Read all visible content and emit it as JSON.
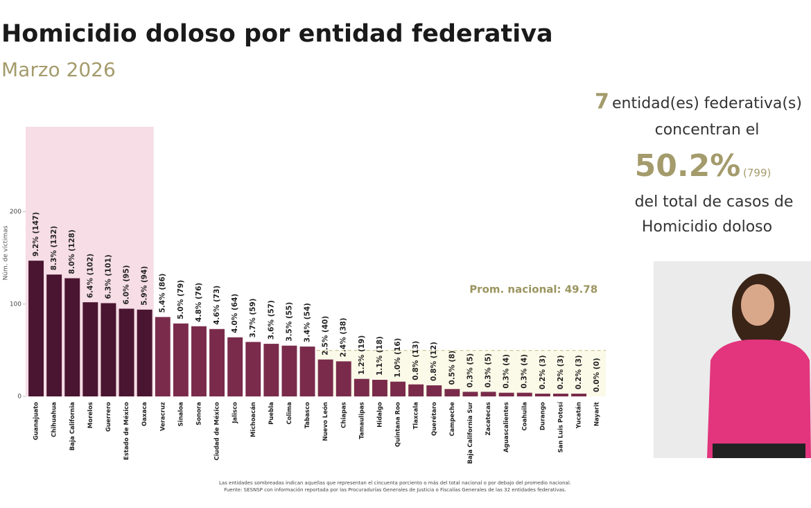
{
  "chart_data": {
    "type": "bar",
    "title": "Homicidio doloso por entidad federativa",
    "subtitle": "Marzo 2026",
    "y_label": "Núm. de víctimas",
    "categories": [
      "Guanajuato",
      "Chihuahua",
      "Baja California",
      "Morelos",
      "Guerrero",
      "Estado de México",
      "Oaxaca",
      "Veracruz",
      "Sinaloa",
      "Sonora",
      "Ciudad de México",
      "Jalisco",
      "Michoacán",
      "Puebla",
      "Colima",
      "Tabasco",
      "Nuevo León",
      "Chiapas",
      "Tamaulipas",
      "Hidalgo",
      "Quintana Roo",
      "Tlaxcala",
      "Querétaro",
      "Campeche",
      "Baja California Sur",
      "Zacatecas",
      "Aguascalientes",
      "Coahuila",
      "Durango",
      "San Luis Potosí",
      "Yucatán",
      "Nayarit"
    ],
    "values": [
      147,
      132,
      128,
      102,
      101,
      95,
      94,
      86,
      79,
      76,
      73,
      64,
      59,
      57,
      55,
      54,
      40,
      38,
      19,
      18,
      16,
      13,
      12,
      8,
      5,
      5,
      4,
      4,
      3,
      3,
      3,
      0
    ],
    "value_labels": [
      "9.2% (147)",
      "8.3% (132)",
      "8.0% (128)",
      "6.4% (102)",
      "6.3% (101)",
      "6.0% (95)",
      "5.9% (94)",
      "5.4% (86)",
      "5.0% (79)",
      "4.8% (76)",
      "4.6% (73)",
      "4.0% (64)",
      "3.7% (59)",
      "3.6% (57)",
      "3.5% (55)",
      "3.4% (54)",
      "2.5% (40)",
      "2.4% (38)",
      "1.2% (19)",
      "1.1% (18)",
      "1.0% (16)",
      "0.8% (13)",
      "0.8% (12)",
      "0.5% (8)",
      "0.3% (5)",
      "0.3% (5)",
      "0.3% (4)",
      "0.3% (4)",
      "0.2% (3)",
      "0.2% (3)",
      "0.2% (3)",
      "0.0% (0)"
    ],
    "colors": [
      "#4a1530",
      "#4a1530",
      "#4a1530",
      "#4a1530",
      "#4a1530",
      "#4a1530",
      "#4a1530",
      "#7a2b4b",
      "#7a2b4b",
      "#7a2b4b",
      "#7a2b4b",
      "#7a2b4b",
      "#7a2b4b",
      "#7a2b4b",
      "#7a2b4b",
      "#7a2b4b",
      "#7a2b4b",
      "#7a2b4b",
      "#7a2b4b",
      "#7a2b4b",
      "#7a2b4b",
      "#7a2b4b",
      "#7a2b4b",
      "#7a2b4b",
      "#7a2b4b",
      "#7a2b4b",
      "#7a2b4b",
      "#7a2b4b",
      "#7a2b4b",
      "#7a2b4b",
      "#7a2b4b",
      "#7a2b4b"
    ],
    "ylim": [
      0,
      292
    ],
    "yticks": [
      0,
      100,
      200
    ],
    "average_line": {
      "value": 49.78,
      "label": "Prom. nacional: 49.78"
    },
    "summary": {
      "count": "7",
      "line1": "entidad(es) federativa(s)",
      "line2": "concentran el",
      "share": "50.2%",
      "cases": "(799)",
      "line3": "del total de casos de",
      "line4": "Homicidio doloso"
    },
    "footnotes": [
      "Las entidades sombreadas indican aquellas que representan el cincuenta porciento o más del total nacional o por debajo del promedio nacional.",
      "Fuente: SESNSP con información reportada por las Procuradurías Generales de Justicia o Fiscalías Generales de las 32 entidades federativas."
    ]
  }
}
